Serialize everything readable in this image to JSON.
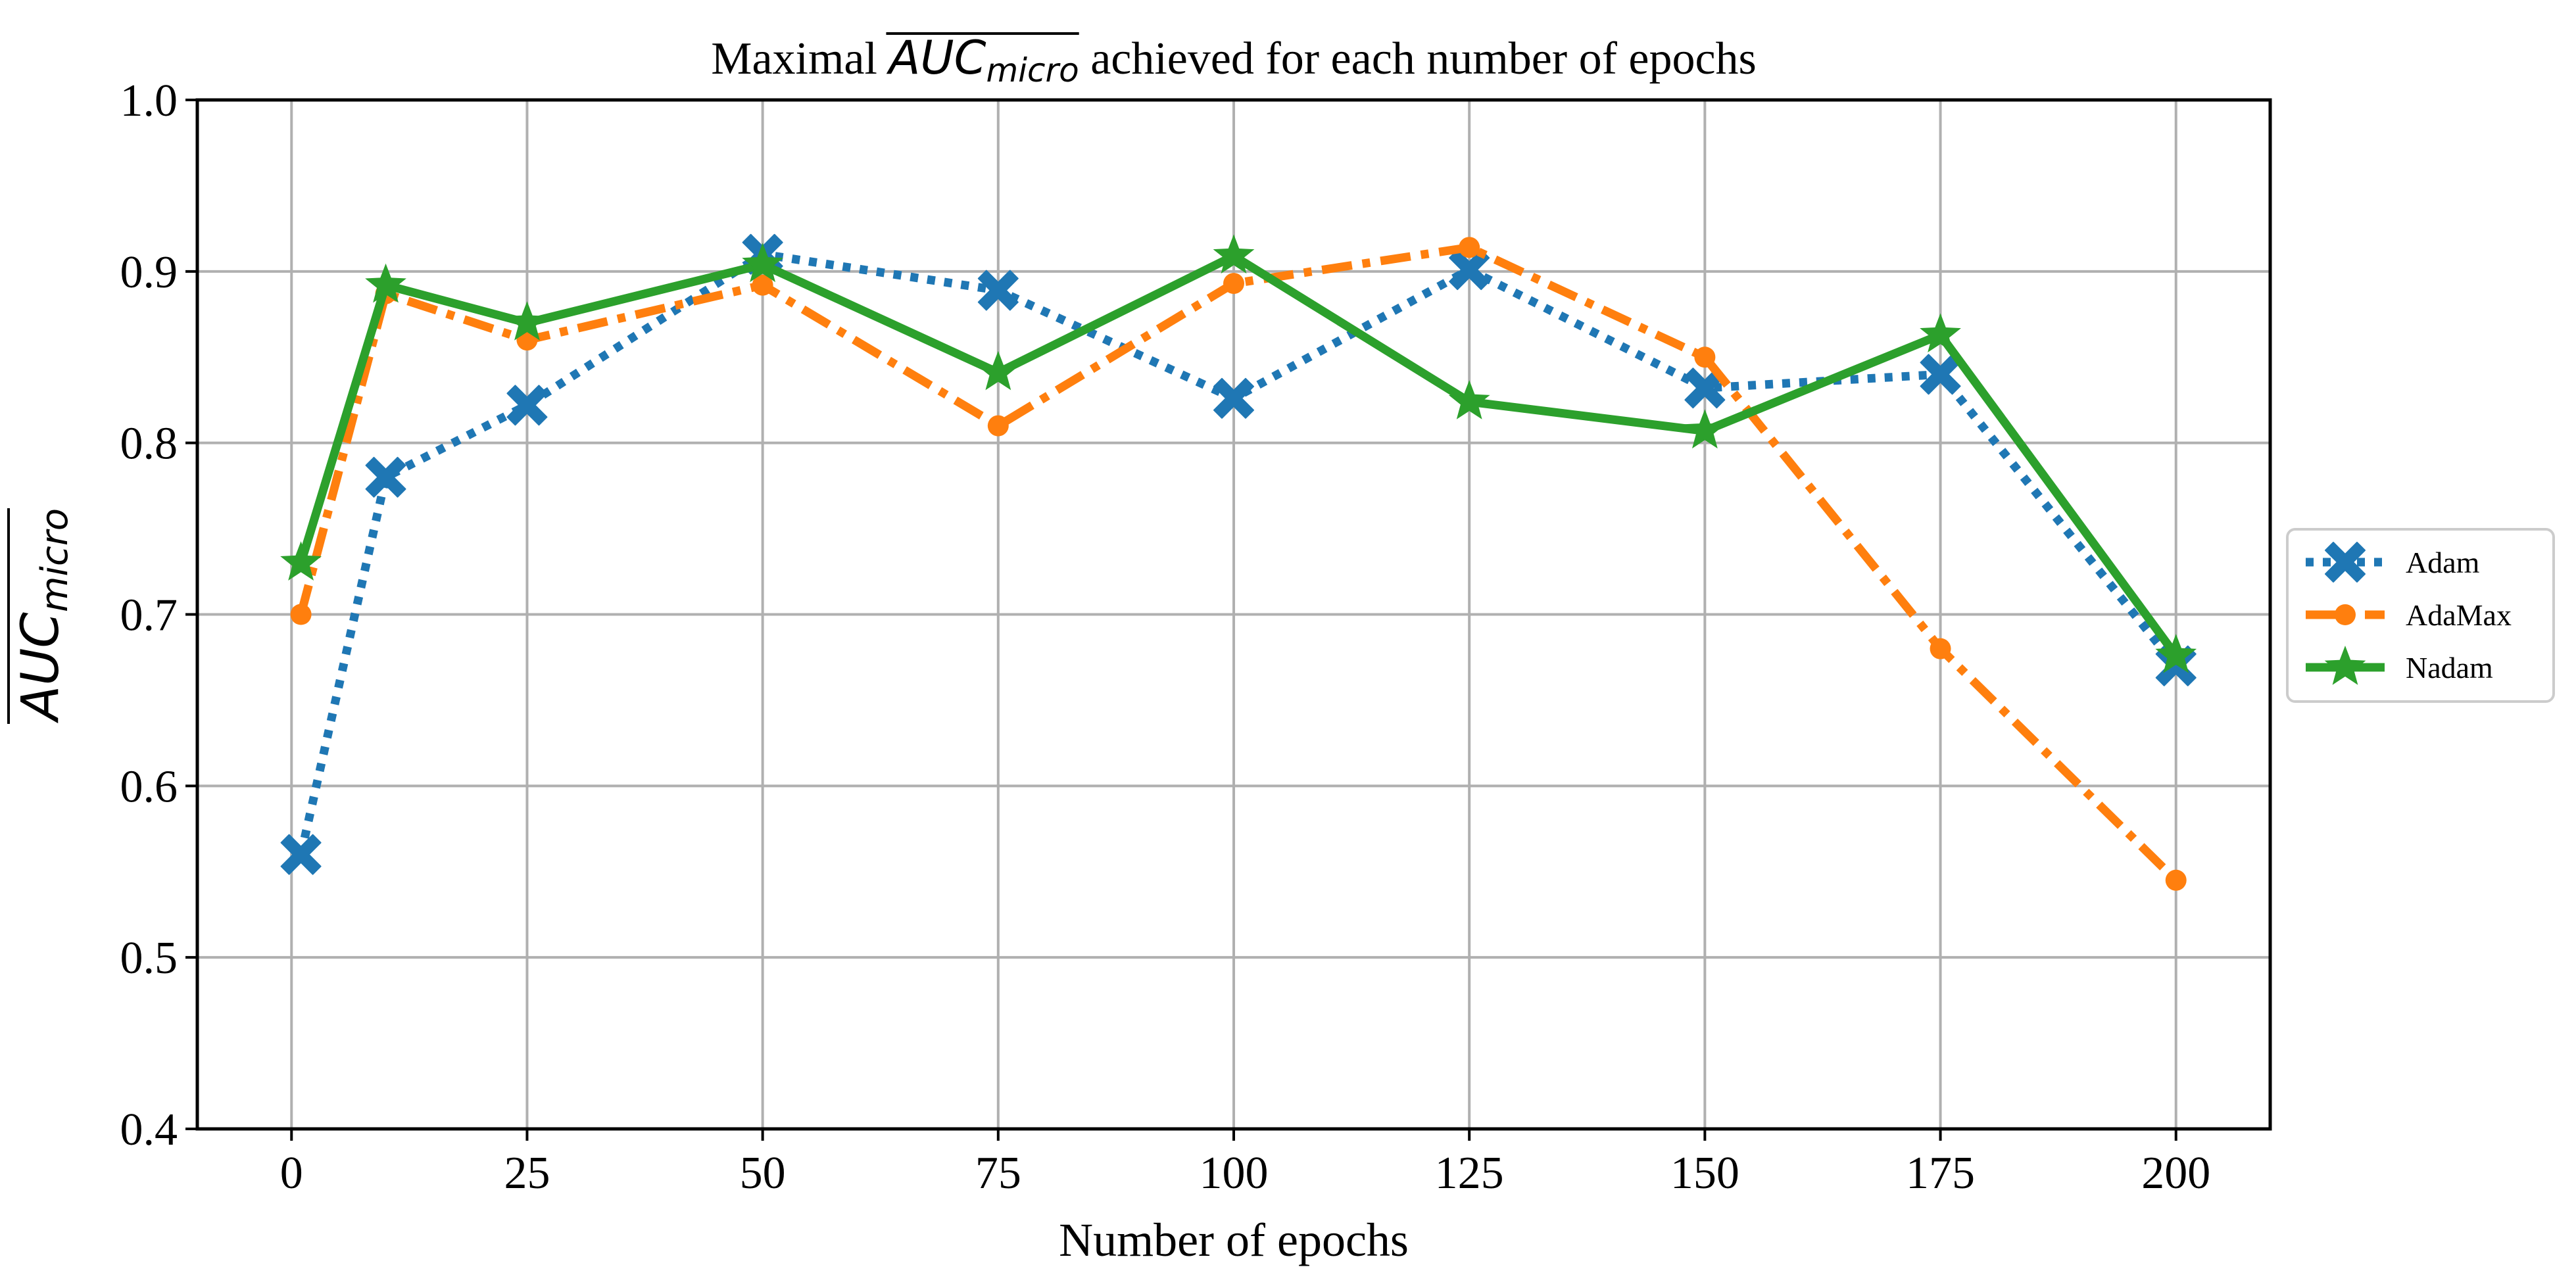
{
  "chart_data": {
    "type": "line",
    "title": {
      "prefix": "Maximal ",
      "auc": "AUC",
      "sub": "micro",
      "suffix": " achieved for each number of epochs"
    },
    "xlabel": "Number of epochs",
    "ylabel": {
      "auc": "AUC",
      "sub": "micro"
    },
    "xlim": [
      -10,
      210
    ],
    "ylim": [
      0.4,
      1.0
    ],
    "xticks": [
      0,
      25,
      50,
      75,
      100,
      125,
      150,
      175,
      200
    ],
    "xtick_labels": [
      "0",
      "25",
      "50",
      "75",
      "100",
      "125",
      "150",
      "175",
      "200"
    ],
    "yticks": [
      0.4,
      0.5,
      0.6,
      0.7,
      0.8,
      0.9,
      1.0
    ],
    "ytick_labels": [
      "0.4",
      "0.5",
      "0.6",
      "0.7",
      "0.8",
      "0.9",
      "1.0"
    ],
    "grid": true,
    "legend_position": "right-outside",
    "x": [
      1,
      10,
      25,
      50,
      75,
      100,
      125,
      150,
      175,
      200
    ],
    "series": [
      {
        "name": "Adam",
        "color": "#1f77b4",
        "linestyle": "dotted",
        "marker": "X",
        "values": [
          0.56,
          0.78,
          0.822,
          0.91,
          0.889,
          0.826,
          0.901,
          0.832,
          0.84,
          0.67
        ]
      },
      {
        "name": "AdaMax",
        "color": "#ff7f0e",
        "linestyle": "dashdot",
        "marker": "o",
        "values": [
          0.7,
          0.887,
          0.86,
          0.892,
          0.81,
          0.893,
          0.914,
          0.85,
          0.68,
          0.545
        ]
      },
      {
        "name": "Nadam",
        "color": "#2ca02c",
        "linestyle": "solid",
        "marker": "*",
        "values": [
          0.73,
          0.892,
          0.87,
          0.904,
          0.841,
          0.909,
          0.824,
          0.807,
          0.863,
          0.676
        ]
      }
    ]
  }
}
